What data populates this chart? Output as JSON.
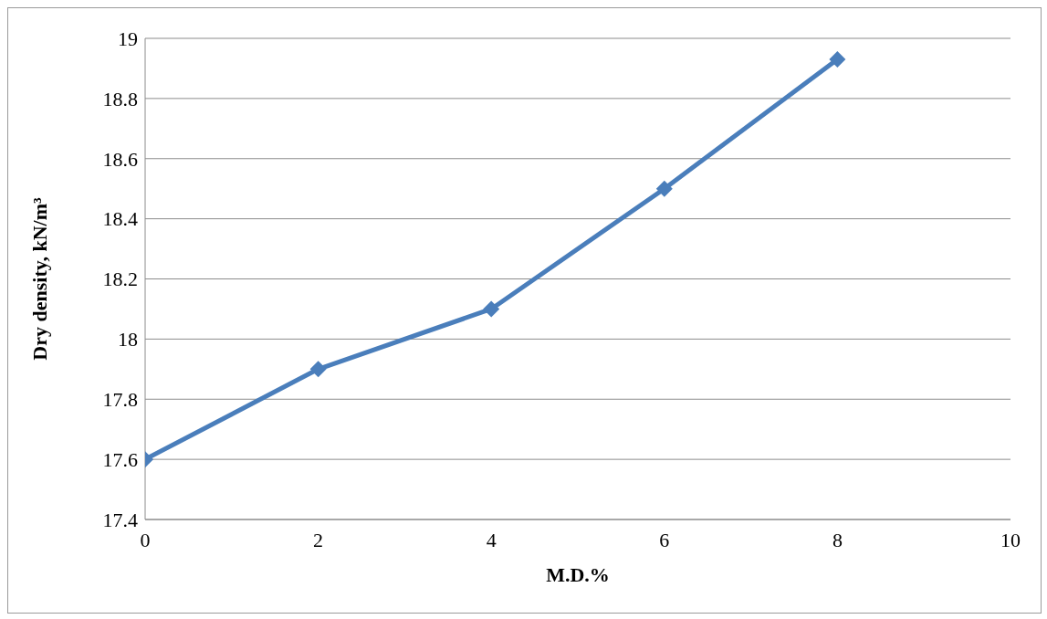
{
  "chart_data": {
    "type": "line",
    "xlabel": "M.D.%",
    "ylabel": "Dry density, kN/m³",
    "x": [
      0,
      2,
      4,
      6,
      8
    ],
    "series": [
      {
        "color": "#4a7ebb",
        "values": [
          17.6,
          17.9,
          18.1,
          18.5,
          18.93
        ]
      }
    ],
    "xlim": [
      0,
      10
    ],
    "xticks": [
      0,
      2,
      4,
      6,
      8,
      10
    ],
    "ylim": [
      17.4,
      19
    ],
    "yticks": [
      17.4,
      17.6,
      17.8,
      18,
      18.2,
      18.4,
      18.6,
      18.8,
      19
    ],
    "grid": "y",
    "marker": "diamond",
    "line_style": "solid"
  }
}
